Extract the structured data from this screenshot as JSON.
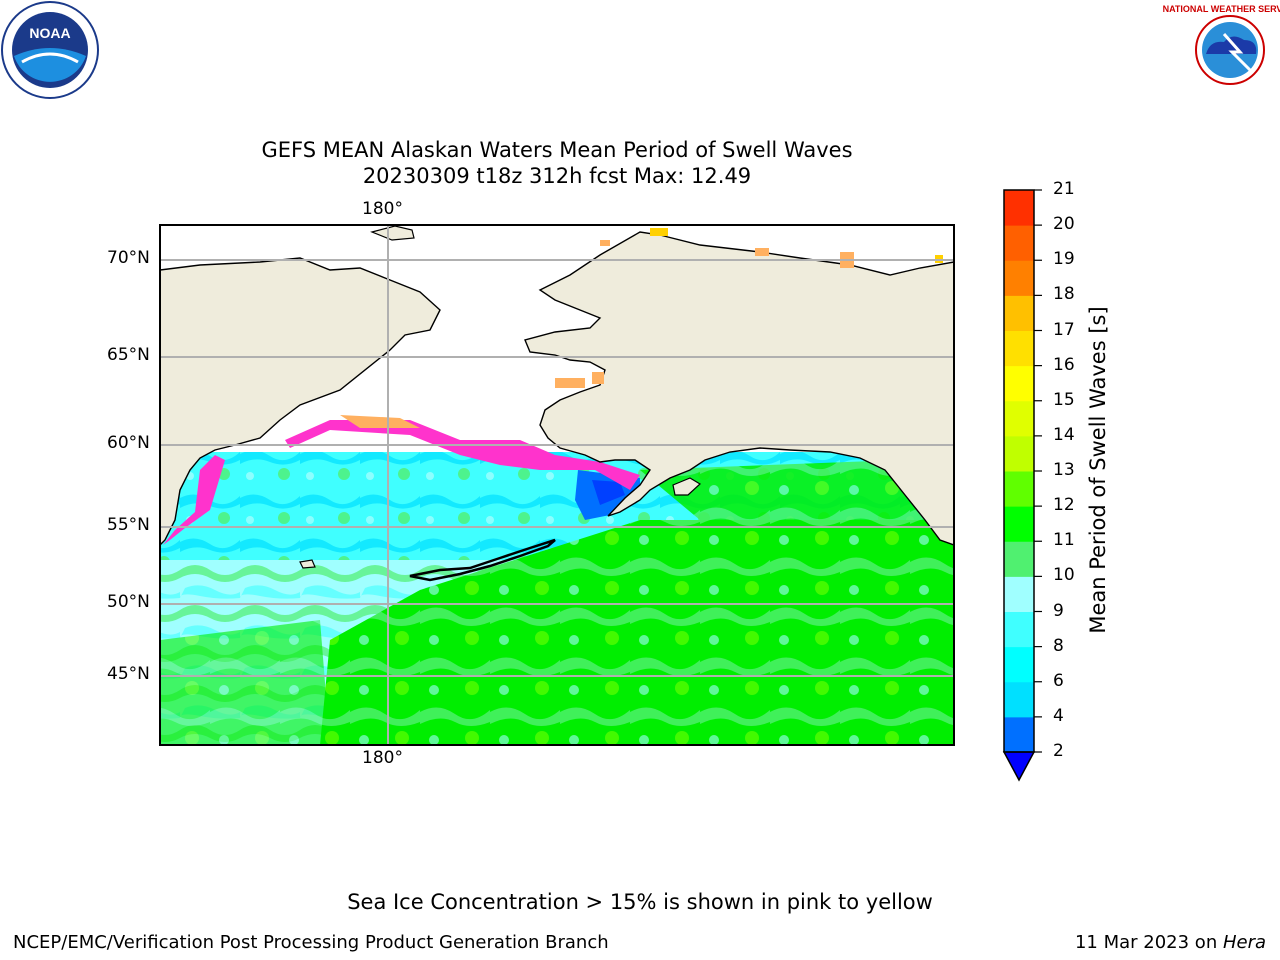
{
  "title": {
    "line1": "GEFS MEAN Alaskan Waters Mean Period of Swell Waves",
    "line2": "20230309 t18z 312h fcst   Max: 12.49"
  },
  "map": {
    "lon_label_top": "180°",
    "lon_label_bottom": "180°",
    "lat_labels": [
      "70°N",
      "65°N",
      "60°N",
      "55°N",
      "50°N",
      "45°N"
    ],
    "colors": {
      "land": "#efecdc",
      "coast": "#000000",
      "grid": "#b0b0b0",
      "ice": "#ff33cc"
    }
  },
  "colorbar": {
    "label": "Mean Period of Swell Waves [s]",
    "ticks": [
      "21",
      "20",
      "19",
      "18",
      "17",
      "16",
      "15",
      "14",
      "13",
      "12",
      "11",
      "10",
      "9",
      "8",
      "6",
      "4",
      "2"
    ],
    "colors": [
      "#0000ff",
      "#0070ff",
      "#00e0ff",
      "#00ffff",
      "#40ffff",
      "#a0ffff",
      "#50f070",
      "#00ff00",
      "#60ff00",
      "#c0ff00",
      "#e0ff00",
      "#ffff00",
      "#ffe000",
      "#ffc000",
      "#ff8000",
      "#ff6000",
      "#ff3000",
      "#ff0000"
    ]
  },
  "logos": {
    "left": "NOAA",
    "right": "NATIONAL WEATHER SERVICE"
  },
  "note": "Sea Ice Concentration > 15% is shown in pink to yellow",
  "footer": {
    "left": "NCEP/EMC/Verification Post Processing Product Generation Branch",
    "right_date": "11 Mar 2023 on ",
    "right_machine": "Hera"
  }
}
